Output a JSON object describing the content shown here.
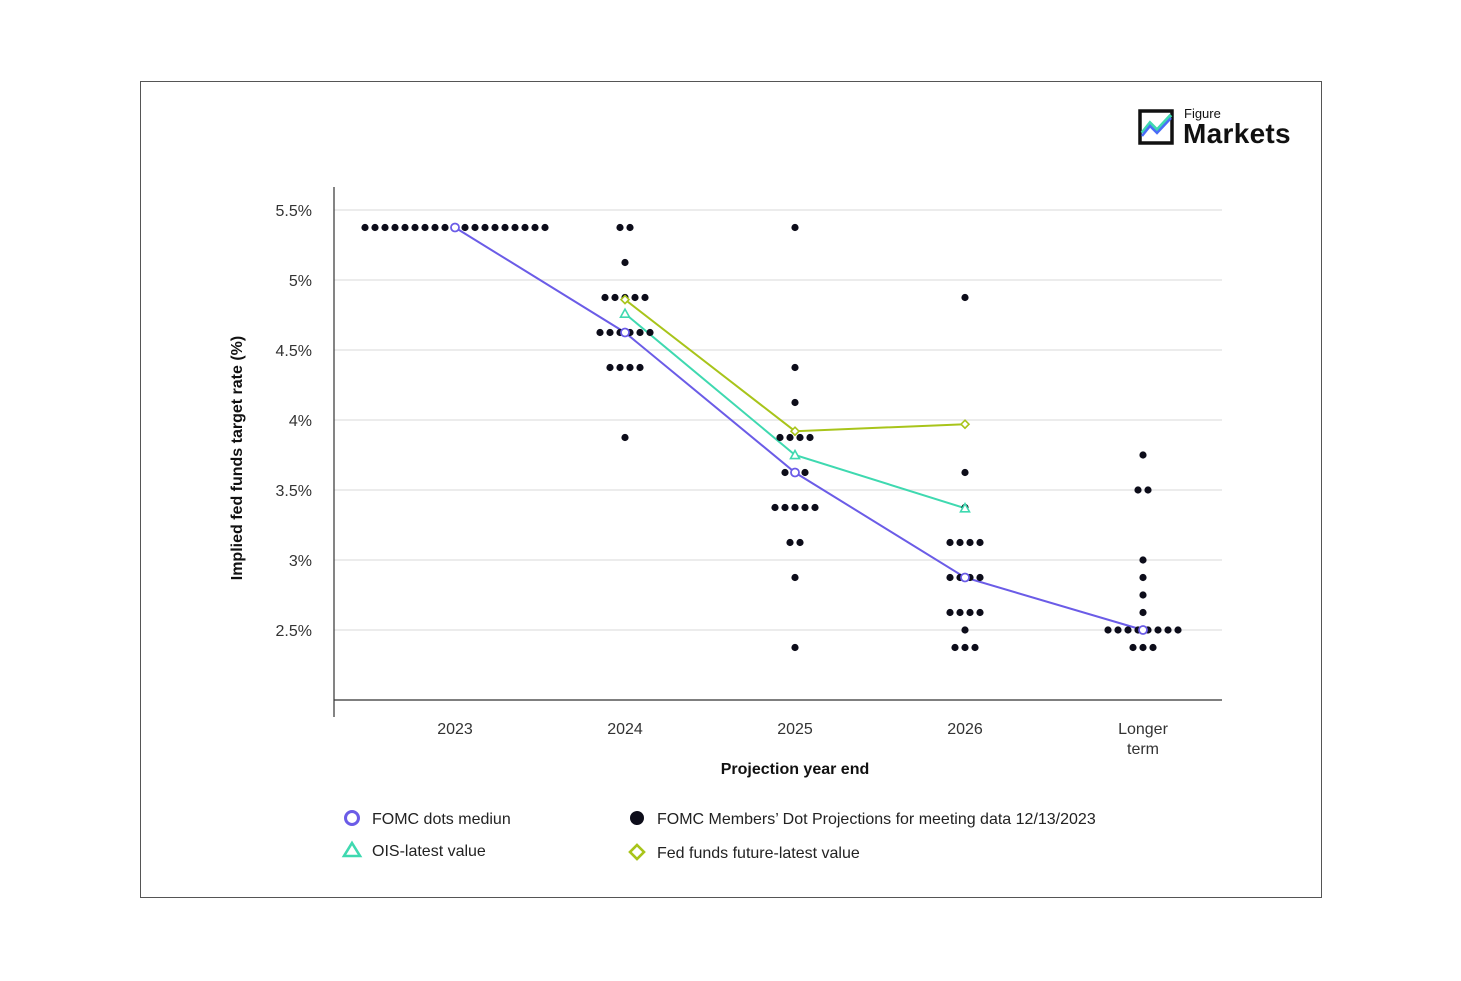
{
  "logo": {
    "small": "Figure",
    "big": "Markets"
  },
  "colors": {
    "median": "#6b5ce7",
    "ois": "#3fd9b0",
    "futures": "#a8c41a",
    "dots": "#0d0d1a",
    "grid": "#e6e6e6"
  },
  "chart_data": {
    "type": "scatter",
    "xlabel": "Projection year end",
    "ylabel": "Implied fed funds target rate (%)",
    "categories": [
      "2023",
      "2024",
      "2025",
      "2026",
      "Longer term"
    ],
    "category_lines": [
      [
        "2023"
      ],
      [
        "2024"
      ],
      [
        "2025"
      ],
      [
        "2026"
      ],
      [
        "Longer",
        "term"
      ]
    ],
    "ylim": [
      2.0,
      5.58
    ],
    "yticks": [
      {
        "value": 5.5,
        "label": "5.5%"
      },
      {
        "value": 5.0,
        "label": "5%"
      },
      {
        "value": 4.5,
        "label": "4.5%"
      },
      {
        "value": 4.0,
        "label": "4%"
      },
      {
        "value": 3.5,
        "label": "3.5%"
      },
      {
        "value": 3.0,
        "label": "3%"
      },
      {
        "value": 2.5,
        "label": "2.5%"
      }
    ],
    "grid": true,
    "dot_projections": {
      "name": "FOMC Members’ Dot Projections for meeting data 12/13/2023",
      "columns": [
        {
          "category": "2023",
          "levels": [
            {
              "y": 5.375,
              "count": 19
            }
          ]
        },
        {
          "category": "2024",
          "levels": [
            {
              "y": 5.375,
              "count": 2
            },
            {
              "y": 5.125,
              "count": 1
            },
            {
              "y": 4.875,
              "count": 5
            },
            {
              "y": 4.625,
              "count": 6
            },
            {
              "y": 4.375,
              "count": 4
            },
            {
              "y": 3.875,
              "count": 1
            }
          ]
        },
        {
          "category": "2025",
          "levels": [
            {
              "y": 5.375,
              "count": 1
            },
            {
              "y": 4.375,
              "count": 1
            },
            {
              "y": 4.125,
              "count": 1
            },
            {
              "y": 3.875,
              "count": 4
            },
            {
              "y": 3.625,
              "count": 3
            },
            {
              "y": 3.375,
              "count": 5
            },
            {
              "y": 3.125,
              "count": 2
            },
            {
              "y": 2.875,
              "count": 1
            },
            {
              "y": 2.375,
              "count": 1
            }
          ]
        },
        {
          "category": "2026",
          "levels": [
            {
              "y": 4.875,
              "count": 1
            },
            {
              "y": 3.625,
              "count": 1
            },
            {
              "y": 3.375,
              "count": 1
            },
            {
              "y": 3.125,
              "count": 4
            },
            {
              "y": 2.875,
              "count": 4
            },
            {
              "y": 2.625,
              "count": 4
            },
            {
              "y": 2.5,
              "count": 1
            },
            {
              "y": 2.375,
              "count": 3
            }
          ]
        },
        {
          "category": "Longer term",
          "levels": [
            {
              "y": 3.75,
              "count": 1
            },
            {
              "y": 3.5,
              "count": 2
            },
            {
              "y": 3.0,
              "count": 1
            },
            {
              "y": 2.875,
              "count": 1
            },
            {
              "y": 2.75,
              "count": 1
            },
            {
              "y": 2.625,
              "count": 1
            },
            {
              "y": 2.5,
              "count": 8
            },
            {
              "y": 2.375,
              "count": 3
            }
          ]
        }
      ]
    },
    "series": [
      {
        "name": "FOMC dots mediun",
        "marker": "circle",
        "x": [
          "2023",
          "2024",
          "2025",
          "2026",
          "Longer term"
        ],
        "values": [
          5.375,
          4.625,
          3.625,
          2.875,
          2.5
        ]
      },
      {
        "name": "OIS-latest value",
        "marker": "triangle",
        "x": [
          "2024",
          "2025",
          "2026"
        ],
        "values": [
          4.76,
          3.75,
          3.37
        ]
      },
      {
        "name": "Fed funds future-latest value",
        "marker": "diamond",
        "x": [
          "2024",
          "2025",
          "2026"
        ],
        "values": [
          4.86,
          3.92,
          3.97
        ]
      }
    ],
    "legend": {
      "position": "bottom",
      "items": [
        {
          "label": "FOMC dots mediun",
          "marker": "circle",
          "color": "#6b5ce7"
        },
        {
          "label": "FOMC Members’ Dot Projections for meeting data 12/13/2023",
          "marker": "dot",
          "color": "#0d0d1a"
        },
        {
          "label": "OIS-latest value",
          "marker": "triangle",
          "color": "#3fd9b0"
        },
        {
          "label": "Fed funds future-latest value",
          "marker": "diamond",
          "color": "#a8c41a"
        }
      ]
    }
  }
}
